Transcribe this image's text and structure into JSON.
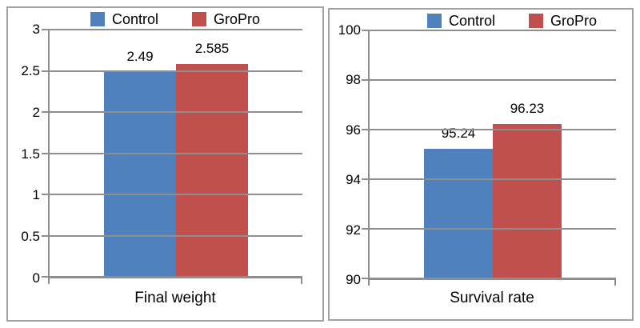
{
  "legend": {
    "control_label": "Control",
    "gropro_label": "GroPro"
  },
  "colors": {
    "control": "#4f81bd",
    "gropro": "#c0504d",
    "gridline": "#8e8e8e",
    "panel_border": "#a2a2a2",
    "text": "#000000"
  },
  "chart_data": [
    {
      "type": "bar",
      "title": "Final weight",
      "categories": [
        "Final weight"
      ],
      "series": [
        {
          "name": "Control",
          "values": [
            2.49
          ],
          "data_labels": [
            "2.49"
          ],
          "color": "#4f81bd"
        },
        {
          "name": "GroPro",
          "values": [
            2.585
          ],
          "data_labels": [
            "2.585"
          ],
          "color": "#c0504d"
        }
      ],
      "ylim": [
        0,
        3
      ],
      "yticks": [
        3,
        2.5,
        2,
        1.5,
        1,
        0.5,
        0
      ],
      "grid": true,
      "legend_position": "top",
      "xlabel": "",
      "ylabel": ""
    },
    {
      "type": "bar",
      "title": "Survival rate",
      "categories": [
        "Survival rate"
      ],
      "series": [
        {
          "name": "Control",
          "values": [
            95.24
          ],
          "data_labels": [
            "95.24"
          ],
          "color": "#4f81bd"
        },
        {
          "name": "GroPro",
          "values": [
            96.23
          ],
          "data_labels": [
            "96.23"
          ],
          "color": "#c0504d"
        }
      ],
      "ylim": [
        90,
        100
      ],
      "yticks": [
        100,
        98,
        96,
        94,
        92,
        90
      ],
      "grid": true,
      "legend_position": "top",
      "xlabel": "",
      "ylabel": ""
    }
  ]
}
